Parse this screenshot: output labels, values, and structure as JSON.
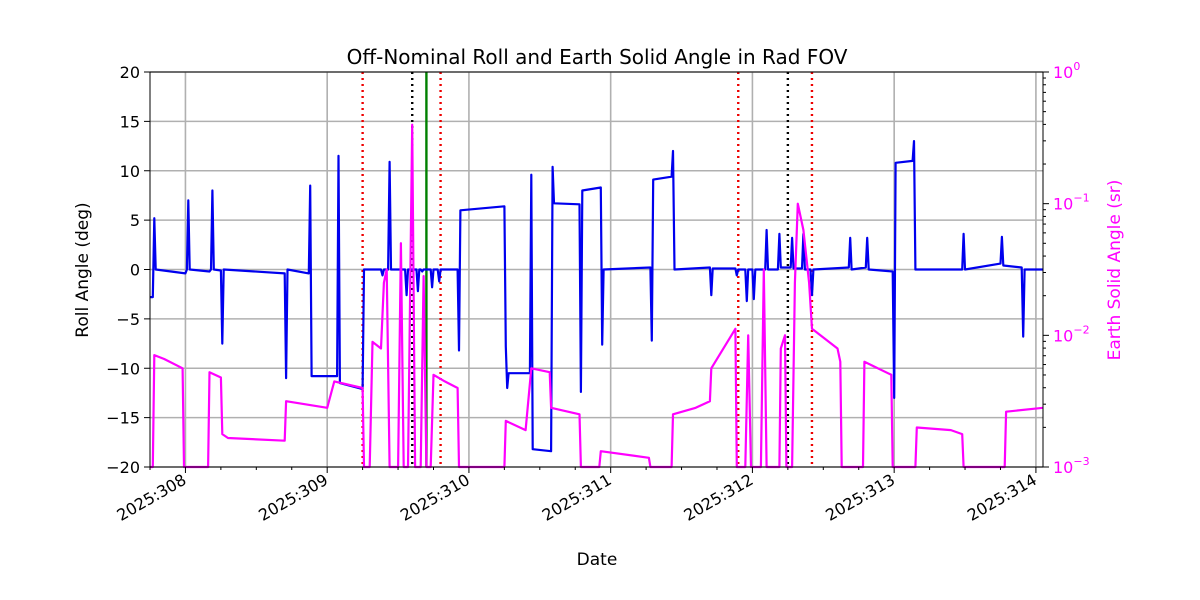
{
  "chart_data": {
    "type": "line",
    "title": "Off-Nominal Roll and Earth Solid Angle in Rad FOV",
    "xlabel": "Date",
    "ylabel": "Roll Angle (deg)",
    "y2label": "Earth Solid Angle (sr)",
    "xlim": [
      307.75,
      314.05
    ],
    "ylim": [
      -20,
      20
    ],
    "y2lim_log10": [
      -3,
      0
    ],
    "grid": true,
    "x_ticks": [
      {
        "value": 308,
        "label": "2025:308"
      },
      {
        "value": 309,
        "label": "2025:309"
      },
      {
        "value": 310,
        "label": "2025:310"
      },
      {
        "value": 311,
        "label": "2025:311"
      },
      {
        "value": 312,
        "label": "2025:312"
      },
      {
        "value": 313,
        "label": "2025:313"
      },
      {
        "value": 314,
        "label": "2025:314"
      }
    ],
    "y_ticks": [
      {
        "value": -20,
        "label": "−20"
      },
      {
        "value": -15,
        "label": "−15"
      },
      {
        "value": -10,
        "label": "−10"
      },
      {
        "value": -5,
        "label": "−5"
      },
      {
        "value": 0,
        "label": "0"
      },
      {
        "value": 5,
        "label": "5"
      },
      {
        "value": 10,
        "label": "10"
      },
      {
        "value": 15,
        "label": "15"
      },
      {
        "value": 20,
        "label": "20"
      }
    ],
    "y2_ticks": [
      {
        "value": -3,
        "base": "10",
        "exp": "−3"
      },
      {
        "value": -2,
        "base": "10",
        "exp": "−2"
      },
      {
        "value": -1,
        "base": "10",
        "exp": "−1"
      },
      {
        "value": 0,
        "base": "10",
        "exp": "0"
      }
    ],
    "colors": {
      "roll": "#0000ee",
      "solid_angle": "#ff00ff",
      "red_line": "#ee0000",
      "black_line": "#000000",
      "green_line": "#008000",
      "grid": "#b0b0b0"
    },
    "vlines": [
      {
        "x": 309.25,
        "style": "red-dotted"
      },
      {
        "x": 309.6,
        "style": "black-dotted"
      },
      {
        "x": 309.7,
        "style": "green-solid"
      },
      {
        "x": 309.8,
        "style": "red-dotted"
      },
      {
        "x": 311.9,
        "style": "red-dotted"
      },
      {
        "x": 312.25,
        "style": "black-dotted"
      },
      {
        "x": 312.42,
        "style": "red-dotted"
      }
    ],
    "series": [
      {
        "name": "Roll Angle",
        "axis": "left",
        "points": [
          [
            307.75,
            -2.8
          ],
          [
            307.77,
            -2.8
          ],
          [
            307.78,
            5.2
          ],
          [
            307.79,
            0
          ],
          [
            308.0,
            -0.4
          ],
          [
            308.01,
            0
          ],
          [
            308.02,
            7
          ],
          [
            308.03,
            0
          ],
          [
            308.17,
            -0.2
          ],
          [
            308.18,
            0
          ],
          [
            308.19,
            8
          ],
          [
            308.2,
            0
          ],
          [
            308.25,
            -0.1
          ],
          [
            308.26,
            -7.5
          ],
          [
            308.27,
            0
          ],
          [
            308.7,
            -0.4
          ],
          [
            308.71,
            -11
          ],
          [
            308.72,
            0
          ],
          [
            308.87,
            -0.4
          ],
          [
            308.88,
            8.5
          ],
          [
            308.89,
            -10.8
          ],
          [
            309.07,
            -10.8
          ],
          [
            309.08,
            11.5
          ],
          [
            309.09,
            -11.5
          ],
          [
            309.25,
            -12.1
          ],
          [
            309.26,
            0
          ],
          [
            309.38,
            0
          ],
          [
            309.39,
            -0.6
          ],
          [
            309.4,
            0
          ],
          [
            309.43,
            0
          ],
          [
            309.44,
            10.9
          ],
          [
            309.45,
            0
          ],
          [
            309.55,
            0
          ],
          [
            309.56,
            -2.6
          ],
          [
            309.57,
            0
          ],
          [
            309.63,
            0
          ],
          [
            309.64,
            -2.2
          ],
          [
            309.65,
            0
          ],
          [
            309.66,
            0
          ],
          [
            309.67,
            -0.2
          ],
          [
            309.68,
            0
          ],
          [
            309.73,
            0
          ],
          [
            309.74,
            -1.8
          ],
          [
            309.75,
            0
          ],
          [
            309.78,
            0
          ],
          [
            309.79,
            -1.2
          ],
          [
            309.8,
            0
          ],
          [
            309.92,
            0
          ],
          [
            309.93,
            -8.2
          ],
          [
            309.94,
            6
          ],
          [
            310.25,
            6.4
          ],
          [
            310.26,
            -7.8
          ],
          [
            310.27,
            -12
          ],
          [
            310.28,
            -10.5
          ],
          [
            310.43,
            -10.5
          ],
          [
            310.44,
            9.6
          ],
          [
            310.45,
            -18.2
          ],
          [
            310.58,
            -18.4
          ],
          [
            310.59,
            10.4
          ],
          [
            310.6,
            6.7
          ],
          [
            310.78,
            6.6
          ],
          [
            310.79,
            -12.4
          ],
          [
            310.8,
            8
          ],
          [
            310.93,
            8.3
          ],
          [
            310.94,
            -7.6
          ],
          [
            310.95,
            0
          ],
          [
            311.28,
            0.2
          ],
          [
            311.29,
            -7.2
          ],
          [
            311.3,
            9.1
          ],
          [
            311.43,
            9.4
          ],
          [
            311.44,
            12
          ],
          [
            311.45,
            0
          ],
          [
            311.7,
            0.2
          ],
          [
            311.71,
            -2.6
          ],
          [
            311.72,
            0.1
          ],
          [
            311.88,
            0.1
          ],
          [
            311.89,
            -0.6
          ],
          [
            311.9,
            0
          ],
          [
            311.95,
            0
          ],
          [
            311.96,
            -3.2
          ],
          [
            311.97,
            0
          ],
          [
            312.0,
            0
          ],
          [
            312.01,
            -3
          ],
          [
            312.02,
            0
          ],
          [
            312.09,
            0
          ],
          [
            312.1,
            4
          ],
          [
            312.11,
            0
          ],
          [
            312.18,
            0
          ],
          [
            312.19,
            3.6
          ],
          [
            312.2,
            0.2
          ],
          [
            312.27,
            0.2
          ],
          [
            312.28,
            3.2
          ],
          [
            312.29,
            0.1
          ],
          [
            312.35,
            0.1
          ],
          [
            312.36,
            3.6
          ],
          [
            312.37,
            0
          ],
          [
            312.41,
            0
          ],
          [
            312.42,
            -2.6
          ],
          [
            312.43,
            0
          ],
          [
            312.68,
            0.2
          ],
          [
            312.69,
            3.2
          ],
          [
            312.7,
            0
          ],
          [
            312.8,
            0.2
          ],
          [
            312.81,
            3.2
          ],
          [
            312.82,
            0
          ],
          [
            312.99,
            -0.2
          ],
          [
            313.0,
            -13
          ],
          [
            313.01,
            10.8
          ],
          [
            313.13,
            11
          ],
          [
            313.14,
            13
          ],
          [
            313.15,
            0
          ],
          [
            313.48,
            0
          ],
          [
            313.49,
            3.6
          ],
          [
            313.5,
            0
          ],
          [
            313.75,
            0.6
          ],
          [
            313.76,
            3.3
          ],
          [
            313.77,
            0.4
          ],
          [
            313.9,
            0.2
          ],
          [
            313.91,
            -6.8
          ],
          [
            313.92,
            0
          ],
          [
            314.05,
            0
          ]
        ]
      },
      {
        "name": "Earth Solid Angle",
        "axis": "right",
        "points": [
          [
            307.75,
            -3
          ],
          [
            307.77,
            -3
          ],
          [
            307.78,
            -2.15
          ],
          [
            307.85,
            -2.18
          ],
          [
            307.98,
            -2.25
          ],
          [
            307.99,
            -3
          ],
          [
            308.16,
            -3
          ],
          [
            308.17,
            -2.28
          ],
          [
            308.25,
            -2.32
          ],
          [
            308.26,
            -2.75
          ],
          [
            308.3,
            -2.78
          ],
          [
            308.7,
            -2.8
          ],
          [
            308.71,
            -2.5
          ],
          [
            309.0,
            -2.55
          ],
          [
            309.05,
            -2.35
          ],
          [
            309.25,
            -2.4
          ],
          [
            309.26,
            -3
          ],
          [
            309.3,
            -3
          ],
          [
            309.32,
            -2.05
          ],
          [
            309.38,
            -2.1
          ],
          [
            309.4,
            -1.6
          ],
          [
            309.42,
            -1.5
          ],
          [
            309.44,
            -3
          ],
          [
            309.5,
            -3
          ],
          [
            309.52,
            -1.3
          ],
          [
            309.54,
            -3
          ],
          [
            309.57,
            -3
          ],
          [
            309.6,
            -0.4
          ],
          [
            309.62,
            -3
          ],
          [
            309.66,
            -3
          ],
          [
            309.68,
            -1.55
          ],
          [
            309.7,
            -3
          ],
          [
            309.73,
            -3
          ],
          [
            309.75,
            -2.3
          ],
          [
            309.83,
            -2.35
          ],
          [
            309.92,
            -2.4
          ],
          [
            309.93,
            -3
          ],
          [
            310.25,
            -3
          ],
          [
            310.26,
            -2.65
          ],
          [
            310.4,
            -2.72
          ],
          [
            310.44,
            -2.25
          ],
          [
            310.57,
            -2.28
          ],
          [
            310.58,
            -2.55
          ],
          [
            310.78,
            -2.6
          ],
          [
            310.79,
            -3
          ],
          [
            310.92,
            -3
          ],
          [
            310.93,
            -2.88
          ],
          [
            311.27,
            -2.93
          ],
          [
            311.28,
            -3
          ],
          [
            311.43,
            -3
          ],
          [
            311.44,
            -2.6
          ],
          [
            311.6,
            -2.55
          ],
          [
            311.7,
            -2.5
          ],
          [
            311.71,
            -2.25
          ],
          [
            311.88,
            -1.95
          ],
          [
            311.89,
            -3
          ],
          [
            311.95,
            -3
          ],
          [
            311.97,
            -2.0
          ],
          [
            311.99,
            -3
          ],
          [
            312.06,
            -3
          ],
          [
            312.08,
            -1.5
          ],
          [
            312.1,
            -3
          ],
          [
            312.19,
            -3
          ],
          [
            312.2,
            -2.1
          ],
          [
            312.23,
            -2.0
          ],
          [
            312.24,
            -3
          ],
          [
            312.28,
            -3
          ],
          [
            312.3,
            -1.6
          ],
          [
            312.32,
            -1.0
          ],
          [
            312.36,
            -1.2
          ],
          [
            312.4,
            -1.6
          ],
          [
            312.42,
            -1.95
          ],
          [
            312.6,
            -2.1
          ],
          [
            312.62,
            -2.2
          ],
          [
            312.63,
            -3
          ],
          [
            312.78,
            -3
          ],
          [
            312.79,
            -2.2
          ],
          [
            312.98,
            -2.3
          ],
          [
            312.99,
            -3
          ],
          [
            313.15,
            -3
          ],
          [
            313.16,
            -2.7
          ],
          [
            313.4,
            -2.72
          ],
          [
            313.48,
            -2.75
          ],
          [
            313.49,
            -3
          ],
          [
            313.78,
            -3
          ],
          [
            313.79,
            -2.58
          ],
          [
            314.05,
            -2.55
          ]
        ]
      }
    ]
  }
}
